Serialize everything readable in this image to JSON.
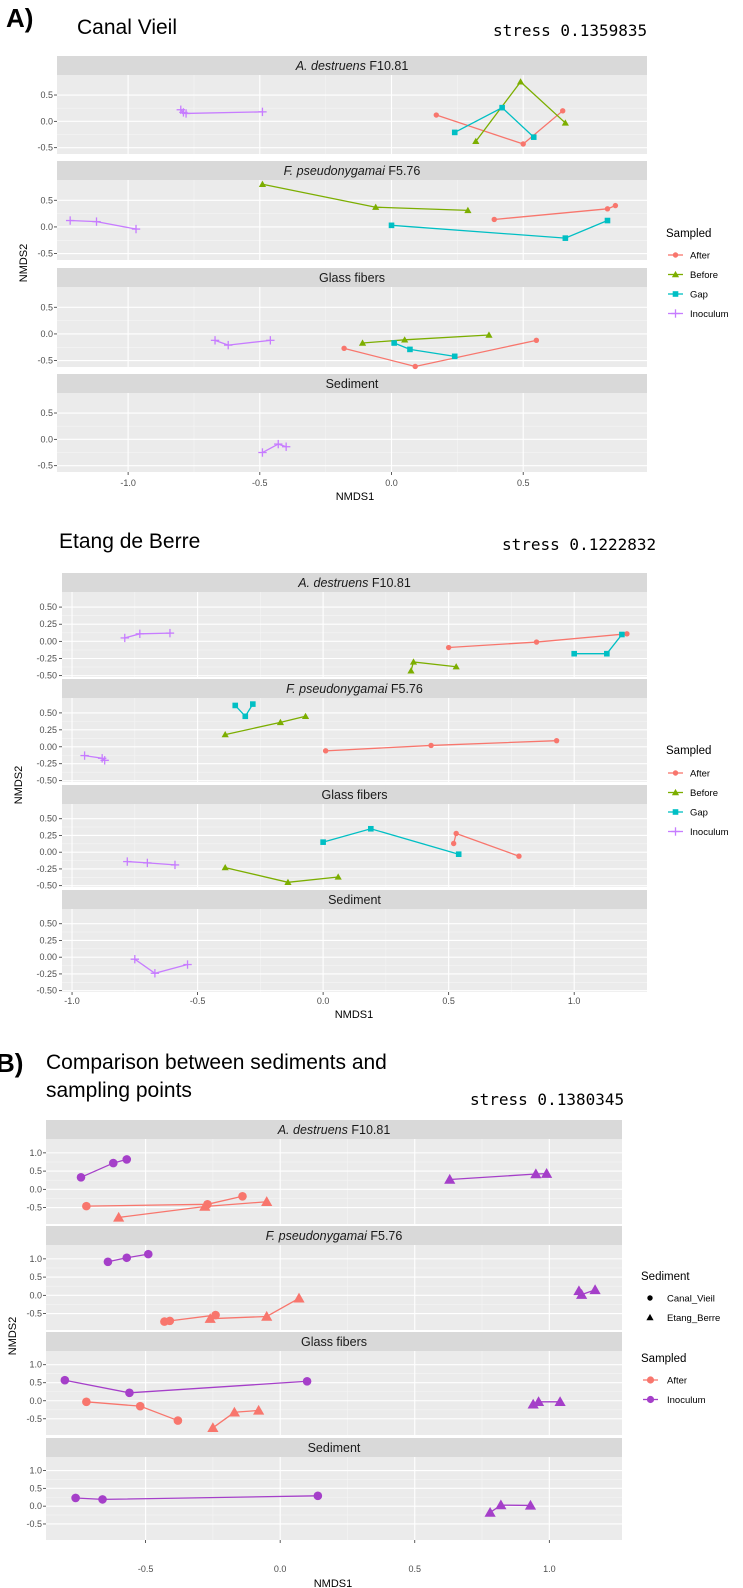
{
  "colors": {
    "After": "#f8766d",
    "Before": "#7cae00",
    "Gap": "#00bfc4",
    "Inoculum": "#c77cff",
    "Inoculum_B": "#a53fc9",
    "panel_bg": "#ebebeb",
    "grid_major": "#ffffff",
    "grid_minor": "#f5f5f5",
    "strip_bg": "#d9d9d9"
  },
  "figure": {
    "panel_label_a": "A)",
    "panel_label_b": "B)"
  },
  "chart_data": [
    {
      "id": "canal",
      "type": "scatter",
      "title": "Canal Vieil",
      "stress": "stress 0.1359835",
      "xlabel": "NMDS1",
      "ylabel": "NMDS2",
      "xlim": [
        -1.27,
        0.97
      ],
      "ylim": [
        -0.62,
        0.88
      ],
      "xticks": [
        -1.0,
        -0.5,
        0.0,
        0.5
      ],
      "xtick_labels": [
        "-1.0",
        "-0.5",
        "0.0",
        "0.5"
      ],
      "yticks": [
        -0.5,
        0.0,
        0.5
      ],
      "ytick_labels": [
        "-0.5",
        "0.0",
        "0.5"
      ],
      "legend": {
        "title": "Sampled",
        "entries": [
          "After",
          "Before",
          "Gap",
          "Inoculum"
        ]
      },
      "facets": [
        {
          "label_italic": "A. destruens",
          "label_rest": " F10.81",
          "series": [
            {
              "group": "After",
              "x": [
                0.17,
                0.5,
                0.65
              ],
              "y": [
                0.12,
                -0.43,
                0.2
              ]
            },
            {
              "group": "Before",
              "x": [
                0.32,
                0.49,
                0.66
              ],
              "y": [
                -0.38,
                0.75,
                -0.03
              ]
            },
            {
              "group": "Gap",
              "x": [
                0.24,
                0.42,
                0.54
              ],
              "y": [
                -0.21,
                0.26,
                -0.3
              ]
            },
            {
              "group": "Inoculum",
              "x": [
                -0.8,
                -0.79,
                -0.78,
                -0.49
              ],
              "y": [
                0.22,
                0.17,
                0.15,
                0.18
              ]
            }
          ]
        },
        {
          "label_italic": "F. pseudonygamai",
          "label_rest": " F5.76",
          "series": [
            {
              "group": "After",
              "x": [
                0.39,
                0.82,
                0.85
              ],
              "y": [
                0.14,
                0.34,
                0.4
              ]
            },
            {
              "group": "Before",
              "x": [
                -0.49,
                -0.06,
                0.29
              ],
              "y": [
                0.8,
                0.37,
                0.31
              ]
            },
            {
              "group": "Gap",
              "x": [
                0.0,
                0.66,
                0.82
              ],
              "y": [
                0.03,
                -0.21,
                0.12
              ]
            },
            {
              "group": "Inoculum",
              "x": [
                -1.22,
                -1.12,
                -0.97
              ],
              "y": [
                0.12,
                0.1,
                -0.04
              ]
            }
          ]
        },
        {
          "label_italic": "",
          "label_rest": "Glass fibers",
          "series": [
            {
              "group": "After",
              "x": [
                -0.18,
                0.09,
                0.55
              ],
              "y": [
                -0.27,
                -0.61,
                -0.12
              ]
            },
            {
              "group": "Before",
              "x": [
                -0.11,
                0.05,
                0.37
              ],
              "y": [
                -0.17,
                -0.11,
                -0.02
              ]
            },
            {
              "group": "Gap",
              "x": [
                0.01,
                0.07,
                0.24
              ],
              "y": [
                -0.17,
                -0.29,
                -0.42
              ]
            },
            {
              "group": "Inoculum",
              "x": [
                -0.67,
                -0.62,
                -0.46
              ],
              "y": [
                -0.12,
                -0.21,
                -0.12
              ]
            }
          ]
        },
        {
          "label_italic": "",
          "label_rest": "Sediment",
          "series": [
            {
              "group": "Inoculum",
              "x": [
                -0.49,
                -0.43,
                -0.4
              ],
              "y": [
                -0.25,
                -0.09,
                -0.14
              ]
            }
          ]
        }
      ]
    },
    {
      "id": "etang",
      "type": "scatter",
      "title": "Etang de Berre",
      "stress": "stress 0.1222832",
      "xlabel": "NMDS1",
      "ylabel": "NMDS2",
      "xlim": [
        -1.04,
        1.29
      ],
      "ylim": [
        -0.52,
        0.72
      ],
      "xticks": [
        -1.0,
        -0.5,
        0.0,
        0.5,
        1.0
      ],
      "xtick_labels": [
        "-1.0",
        "-0.5",
        "0.0",
        "0.5",
        "1.0"
      ],
      "yticks": [
        -0.5,
        -0.25,
        0.0,
        0.25,
        0.5
      ],
      "ytick_labels": [
        "-0.50",
        "-0.25",
        "0.00",
        "0.25",
        "0.50"
      ],
      "legend": {
        "title": "Sampled",
        "entries": [
          "After",
          "Before",
          "Gap",
          "Inoculum"
        ]
      },
      "facets": [
        {
          "label_italic": "A. destruens",
          "label_rest": " F10.81",
          "series": [
            {
              "group": "After",
              "x": [
                0.5,
                0.85,
                1.21
              ],
              "y": [
                -0.09,
                -0.01,
                0.11
              ]
            },
            {
              "group": "Before",
              "x": [
                0.35,
                0.36,
                0.53
              ],
              "y": [
                -0.43,
                -0.3,
                -0.37
              ]
            },
            {
              "group": "Gap",
              "x": [
                1.0,
                1.13,
                1.19
              ],
              "y": [
                -0.18,
                -0.18,
                0.1
              ]
            },
            {
              "group": "Inoculum",
              "x": [
                -0.79,
                -0.73,
                -0.61
              ],
              "y": [
                0.05,
                0.11,
                0.12
              ]
            }
          ]
        },
        {
          "label_italic": "F. pseudonygamai",
          "label_rest": " F5.76",
          "series": [
            {
              "group": "After",
              "x": [
                0.01,
                0.43,
                0.93
              ],
              "y": [
                -0.06,
                0.02,
                0.09
              ]
            },
            {
              "group": "Before",
              "x": [
                -0.39,
                -0.17,
                -0.07
              ],
              "y": [
                0.18,
                0.36,
                0.45
              ]
            },
            {
              "group": "Gap",
              "x": [
                -0.35,
                -0.31,
                -0.28
              ],
              "y": [
                0.61,
                0.45,
                0.63
              ]
            },
            {
              "group": "Inoculum",
              "x": [
                -0.95,
                -0.88,
                -0.87
              ],
              "y": [
                -0.13,
                -0.17,
                -0.2
              ]
            }
          ]
        },
        {
          "label_italic": "",
          "label_rest": "Glass fibers",
          "series": [
            {
              "group": "After",
              "x": [
                0.52,
                0.53,
                0.78
              ],
              "y": [
                0.13,
                0.28,
                -0.06
              ]
            },
            {
              "group": "Before",
              "x": [
                -0.39,
                -0.14,
                0.06
              ],
              "y": [
                -0.23,
                -0.45,
                -0.37
              ]
            },
            {
              "group": "Gap",
              "x": [
                0.0,
                0.19,
                0.54
              ],
              "y": [
                0.15,
                0.35,
                -0.03
              ]
            },
            {
              "group": "Inoculum",
              "x": [
                -0.78,
                -0.7,
                -0.59
              ],
              "y": [
                -0.14,
                -0.16,
                -0.19
              ]
            }
          ]
        },
        {
          "label_italic": "",
          "label_rest": "Sediment",
          "series": [
            {
              "group": "Inoculum",
              "x": [
                -0.75,
                -0.67,
                -0.54
              ],
              "y": [
                -0.03,
                -0.24,
                -0.11
              ]
            }
          ]
        }
      ]
    },
    {
      "id": "compare",
      "type": "scatter",
      "title_lines": [
        "Comparison between sediments and",
        "sampling points"
      ],
      "stress": "stress 0.1380345",
      "xlabel": "NMDS1",
      "ylabel": "NMDS2",
      "xlim": [
        -0.87,
        1.27
      ],
      "ylim": [
        -0.95,
        1.38
      ],
      "xticks": [
        -0.5,
        0.0,
        0.5,
        1.0
      ],
      "xtick_labels": [
        "-0.5",
        "0.0",
        "0.5",
        "1.0"
      ],
      "yticks": [
        -0.5,
        0.0,
        0.5,
        1.0
      ],
      "ytick_labels": [
        "-0.5",
        "0.0",
        "0.5",
        "1.0"
      ],
      "legend": {
        "shape_title": "Sediment",
        "shape_entries": [
          "Canal_Vieil",
          "Etang_Berre"
        ],
        "color_title": "Sampled",
        "color_entries": [
          "After",
          "Inoculum"
        ]
      },
      "facets": [
        {
          "label_italic": "A. destruens",
          "label_rest": " F10.81",
          "series": [
            {
              "group": "After",
              "shape": "circle",
              "x": [
                -0.72,
                -0.27,
                -0.14
              ],
              "y": [
                -0.46,
                -0.41,
                -0.19
              ]
            },
            {
              "group": "After",
              "shape": "triangle",
              "x": [
                -0.6,
                -0.28,
                -0.05
              ],
              "y": [
                -0.77,
                -0.47,
                -0.34
              ]
            },
            {
              "group": "Inoculum",
              "shape": "circle",
              "x": [
                -0.74,
                -0.62,
                -0.57
              ],
              "y": [
                0.33,
                0.72,
                0.82
              ]
            },
            {
              "group": "Inoculum",
              "shape": "triangle",
              "x": [
                0.63,
                0.95,
                0.99
              ],
              "y": [
                0.27,
                0.42,
                0.43
              ]
            }
          ]
        },
        {
          "label_italic": "F. pseudonygamai",
          "label_rest": " F5.76",
          "series": [
            {
              "group": "After",
              "shape": "circle",
              "x": [
                -0.43,
                -0.41,
                -0.24
              ],
              "y": [
                -0.72,
                -0.7,
                -0.54
              ]
            },
            {
              "group": "After",
              "shape": "triangle",
              "x": [
                -0.26,
                -0.05,
                0.07
              ],
              "y": [
                -0.64,
                -0.58,
                -0.08
              ]
            },
            {
              "group": "Inoculum",
              "shape": "circle",
              "x": [
                -0.64,
                -0.57,
                -0.49
              ],
              "y": [
                0.92,
                1.03,
                1.13
              ]
            },
            {
              "group": "Inoculum",
              "shape": "triangle",
              "x": [
                1.11,
                1.12,
                1.17
              ],
              "y": [
                0.12,
                0.02,
                0.15
              ]
            }
          ]
        },
        {
          "label_italic": "",
          "label_rest": "Glass fibers",
          "series": [
            {
              "group": "After",
              "shape": "circle",
              "x": [
                -0.72,
                -0.52,
                -0.38
              ],
              "y": [
                -0.03,
                -0.15,
                -0.55
              ]
            },
            {
              "group": "After",
              "shape": "triangle",
              "x": [
                -0.25,
                -0.17,
                -0.08
              ],
              "y": [
                -0.75,
                -0.32,
                -0.27
              ]
            },
            {
              "group": "Inoculum",
              "shape": "circle",
              "x": [
                -0.8,
                -0.56,
                0.1
              ],
              "y": [
                0.57,
                0.22,
                0.54
              ]
            },
            {
              "group": "Inoculum",
              "shape": "triangle",
              "x": [
                0.94,
                0.96,
                1.04
              ],
              "y": [
                -0.1,
                -0.03,
                -0.03
              ]
            }
          ]
        },
        {
          "label_italic": "",
          "label_rest": "Sediment",
          "series": [
            {
              "group": "Inoculum",
              "shape": "circle",
              "x": [
                -0.76,
                -0.66,
                0.14
              ],
              "y": [
                0.23,
                0.19,
                0.29
              ]
            },
            {
              "group": "Inoculum",
              "shape": "triangle",
              "x": [
                0.78,
                0.82,
                0.93
              ],
              "y": [
                -0.18,
                0.03,
                0.02
              ]
            }
          ]
        }
      ]
    }
  ]
}
